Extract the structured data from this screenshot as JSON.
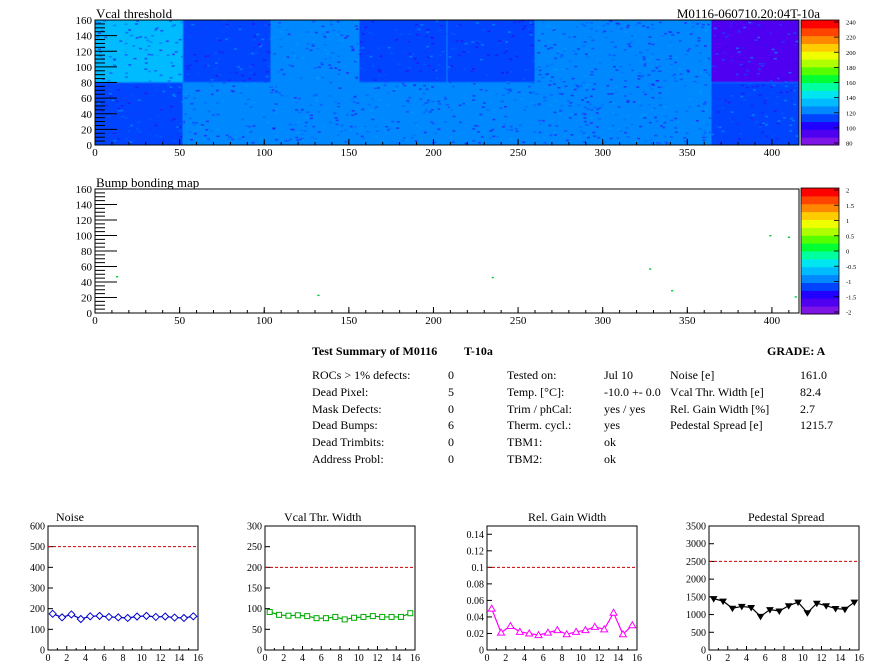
{
  "colors": {
    "palette": [
      "#7e14e6",
      "#5000f0",
      "#2200ff",
      "#0044ff",
      "#0088ff",
      "#00bbff",
      "#00e6f0",
      "#00ff9f",
      "#00ff33",
      "#55ff00",
      "#b0ff00",
      "#f0ff00",
      "#ffcc00",
      "#ff8800",
      "#ff4400",
      "#ff0000"
    ],
    "threshold": "#cc0000",
    "series_colors": [
      "#0000cc",
      "#00aa00",
      "#ff00ff",
      "#000000"
    ]
  },
  "heatmaps": [
    {
      "title": "Vcal threshold",
      "label_right": "M0116-060710.20:04T-10a",
      "xlim": [
        0,
        416
      ],
      "ylim": [
        0,
        160
      ],
      "xticks": [
        "0",
        "50",
        "100",
        "150",
        "200",
        "250",
        "300",
        "350",
        "400"
      ],
      "yticks": [
        "0",
        "20",
        "40",
        "60",
        "80",
        "100",
        "120",
        "140",
        "160"
      ],
      "colorbar": [
        "80",
        "100",
        "120",
        "140",
        "160",
        "180",
        "200",
        "220",
        "240"
      ]
    },
    {
      "title": "Bump bonding map",
      "xlim": [
        0,
        416
      ],
      "ylim": [
        0,
        160
      ],
      "xticks": [
        "0",
        "50",
        "100",
        "150",
        "200",
        "250",
        "300",
        "350",
        "400"
      ],
      "yticks": [
        "0",
        "20",
        "40",
        "60",
        "80",
        "100",
        "120",
        "140",
        "160"
      ],
      "colorbar": [
        "-2",
        "-1.5",
        "-1",
        "-0.5",
        "0",
        "0.5",
        "1",
        "1.5",
        "2"
      ]
    }
  ],
  "summary": {
    "title": "Test Summary of M0116",
    "temp_tag": "T-10a",
    "grade": "GRADE:  A",
    "left": [
      {
        "label": "ROCs > 1% defects:",
        "value": "0"
      },
      {
        "label": "Dead Pixel:",
        "value": "5"
      },
      {
        "label": "Mask Defects:",
        "value": "0"
      },
      {
        "label": "Dead Bumps:",
        "value": "6"
      },
      {
        "label": "Dead Trimbits:",
        "value": "0"
      },
      {
        "label": "Address Probl:",
        "value": "0"
      }
    ],
    "middle": [
      {
        "label": "Tested on:",
        "value": "Jul 10"
      },
      {
        "label": "Temp. [°C]:",
        "value": "-10.0 +- 0.0"
      },
      {
        "label": "Trim / phCal:",
        "value": "yes / yes"
      },
      {
        "label": "Therm. cycl.:",
        "value": "yes"
      },
      {
        "label": "TBM1:",
        "value": "ok"
      },
      {
        "label": "TBM2:",
        "value": "ok"
      }
    ],
    "right": [
      {
        "label": "Noise [e]",
        "value": "161.0"
      },
      {
        "label": "Vcal Thr. Width [e]",
        "value": "82.4"
      },
      {
        "label": "Rel. Gain Width [%]",
        "value": "2.7"
      },
      {
        "label": "Pedestal Spread [e]",
        "value": "1215.7"
      }
    ]
  },
  "chart_data": [
    {
      "type": "heatmap",
      "title": "Vcal threshold",
      "annotation": "M0116-060710.20:04T-10a",
      "xlim": [
        0,
        416
      ],
      "ylim": [
        0,
        160
      ],
      "zlim": [
        80,
        250
      ],
      "roc_grid": {
        "cols": 8,
        "rows": 2,
        "roc_width": 52,
        "roc_height": 80
      },
      "roc_means_top_row": [
        140,
        122,
        128,
        122,
        120,
        125,
        128,
        95
      ],
      "roc_means_bottom_row": [
        112,
        126,
        125,
        126,
        124,
        126,
        128,
        122
      ]
    },
    {
      "type": "scatter",
      "title": "Bump bonding map",
      "xlim": [
        0,
        416
      ],
      "ylim": [
        0,
        160
      ],
      "zlim": [
        -2,
        2
      ],
      "points": [
        {
          "x": 13,
          "y": 47
        },
        {
          "x": 132,
          "y": 23
        },
        {
          "x": 235,
          "y": 46
        },
        {
          "x": 328,
          "y": 57
        },
        {
          "x": 341,
          "y": 29
        },
        {
          "x": 399,
          "y": 100
        },
        {
          "x": 410,
          "y": 98
        },
        {
          "x": 414,
          "y": 21
        }
      ]
    },
    {
      "type": "line",
      "title": "Noise",
      "x": [
        0,
        1,
        2,
        3,
        4,
        5,
        6,
        7,
        8,
        9,
        10,
        11,
        12,
        13,
        14,
        15
      ],
      "values": [
        175,
        158,
        172,
        150,
        163,
        165,
        160,
        158,
        155,
        162,
        165,
        160,
        162,
        157,
        155,
        163
      ],
      "xlim": [
        0,
        16
      ],
      "ylim": [
        0,
        600
      ],
      "yticks": [
        0,
        100,
        200,
        300,
        400,
        500,
        600
      ],
      "threshold": 500
    },
    {
      "type": "line",
      "title": "Vcal Thr. Width",
      "x": [
        0,
        1,
        2,
        3,
        4,
        5,
        6,
        7,
        8,
        9,
        10,
        11,
        12,
        13,
        14,
        15
      ],
      "values": [
        92,
        85,
        83,
        84,
        82,
        77,
        77,
        80,
        74,
        78,
        80,
        82,
        80,
        80,
        80,
        89
      ],
      "xlim": [
        0,
        16
      ],
      "ylim": [
        0,
        300
      ],
      "yticks": [
        0,
        50,
        100,
        150,
        200,
        250,
        300
      ],
      "threshold": 200
    },
    {
      "type": "line",
      "title": "Rel. Gain Width",
      "x": [
        0,
        1,
        2,
        3,
        4,
        5,
        6,
        7,
        8,
        9,
        10,
        11,
        12,
        13,
        14,
        15
      ],
      "values": [
        0.05,
        0.021,
        0.029,
        0.022,
        0.02,
        0.018,
        0.021,
        0.024,
        0.019,
        0.022,
        0.024,
        0.028,
        0.025,
        0.045,
        0.019,
        0.03
      ],
      "xlim": [
        0,
        16
      ],
      "ylim": [
        0,
        0.15
      ],
      "yticks": [
        0,
        0.02,
        0.04,
        0.06,
        0.08,
        0.1,
        0.12,
        0.14
      ],
      "threshold": 0.1
    },
    {
      "type": "line",
      "title": "Pedestal Spread",
      "x": [
        0,
        1,
        2,
        3,
        4,
        5,
        6,
        7,
        8,
        9,
        10,
        11,
        12,
        13,
        14,
        15
      ],
      "values": [
        1450,
        1380,
        1180,
        1230,
        1200,
        950,
        1140,
        1100,
        1250,
        1350,
        1050,
        1320,
        1250,
        1170,
        1150,
        1350
      ],
      "xlim": [
        0,
        16
      ],
      "ylim": [
        0,
        3500
      ],
      "yticks": [
        0,
        500,
        1000,
        1500,
        2000,
        2500,
        3000,
        3500
      ],
      "threshold": 2500
    }
  ]
}
